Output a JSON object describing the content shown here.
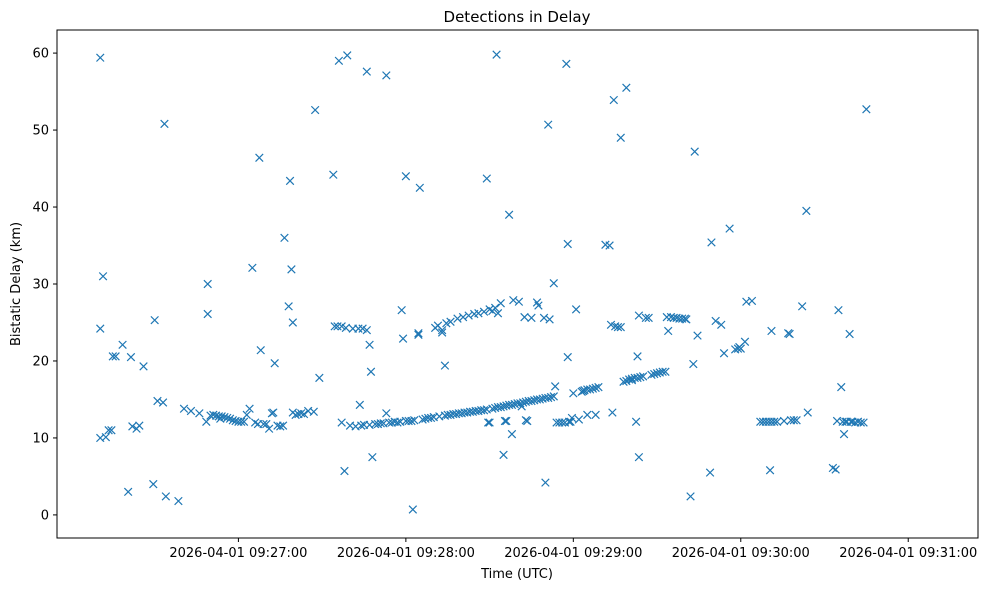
{
  "chart_data": {
    "type": "scatter",
    "title": "Detections in Delay",
    "xlabel": "Time (UTC)",
    "ylabel": "Bistatic Delay (km)",
    "marker": "x",
    "color": "#1f77b4",
    "x_unit": "seconds after 2026-04-01 09:26:00",
    "xlim": [
      -5,
      325
    ],
    "ylim": [
      -3,
      63
    ],
    "xticks": [
      {
        "value": 60,
        "label": "2026-04-01 09:27:00"
      },
      {
        "value": 120,
        "label": "2026-04-01 09:28:00"
      },
      {
        "value": 180,
        "label": "2026-04-01 09:29:00"
      },
      {
        "value": 240,
        "label": "2026-04-01 09:30:00"
      },
      {
        "value": 300,
        "label": "2026-04-01 09:31:00"
      }
    ],
    "yticks": [
      {
        "value": 0,
        "label": "0"
      },
      {
        "value": 10,
        "label": "10"
      },
      {
        "value": 20,
        "label": "20"
      },
      {
        "value": 30,
        "label": "30"
      },
      {
        "value": 40,
        "label": "40"
      },
      {
        "value": 50,
        "label": "50"
      },
      {
        "value": 60,
        "label": "60"
      }
    ],
    "points": [
      [
        10.5,
        59.4
      ],
      [
        10.5,
        24.2
      ],
      [
        10.5,
        10.0
      ],
      [
        11.5,
        31.0
      ],
      [
        12.5,
        10.1
      ],
      [
        13.5,
        11.0
      ],
      [
        14.5,
        11.0
      ],
      [
        15,
        20.6
      ],
      [
        16,
        20.6
      ],
      [
        18.5,
        22.1
      ],
      [
        20.5,
        3.0
      ],
      [
        21.5,
        20.5
      ],
      [
        22,
        11.5
      ],
      [
        23.5,
        11.2
      ],
      [
        24.5,
        11.6
      ],
      [
        26,
        19.3
      ],
      [
        29.5,
        4.0
      ],
      [
        30,
        25.3
      ],
      [
        31,
        14.8
      ],
      [
        33,
        14.6
      ],
      [
        33.5,
        50.8
      ],
      [
        34,
        2.4
      ],
      [
        38.5,
        1.8
      ],
      [
        40.5,
        13.8
      ],
      [
        43,
        13.5
      ],
      [
        46,
        13.2
      ],
      [
        48.5,
        12.1
      ],
      [
        49,
        26.1
      ],
      [
        49,
        30.0
      ],
      [
        50,
        12.9
      ],
      [
        51,
        13.0
      ],
      [
        52,
        12.9
      ],
      [
        53,
        12.8
      ],
      [
        53.5,
        12.5
      ],
      [
        54,
        12.8
      ],
      [
        55,
        12.7
      ],
      [
        56,
        12.6
      ],
      [
        57,
        12.5
      ],
      [
        58,
        12.3
      ],
      [
        59,
        12.2
      ],
      [
        60,
        12.1
      ],
      [
        61,
        12.1
      ],
      [
        62,
        12.1
      ],
      [
        63,
        13.0
      ],
      [
        64,
        13.8
      ],
      [
        65,
        32.1
      ],
      [
        66,
        12.0
      ],
      [
        67,
        11.8
      ],
      [
        67.5,
        46.4
      ],
      [
        68,
        21.4
      ],
      [
        69,
        11.8
      ],
      [
        70,
        11.8
      ],
      [
        71,
        11.2
      ],
      [
        72,
        13.2
      ],
      [
        72.5,
        13.3
      ],
      [
        73,
        19.7
      ],
      [
        74,
        11.6
      ],
      [
        75,
        11.5
      ],
      [
        76,
        11.6
      ],
      [
        76.5,
        36.0
      ],
      [
        78,
        27.1
      ],
      [
        78.5,
        43.4
      ],
      [
        79,
        31.9
      ],
      [
        79.5,
        25.0
      ],
      [
        79.5,
        13.3
      ],
      [
        80.5,
        13.0
      ],
      [
        81.5,
        13.1
      ],
      [
        82.5,
        13.2
      ],
      [
        83.5,
        13.1
      ],
      [
        85,
        13.5
      ],
      [
        87,
        13.4
      ],
      [
        87.5,
        52.6
      ],
      [
        89,
        17.8
      ],
      [
        94,
        44.2
      ],
      [
        94.5,
        24.5
      ],
      [
        95.5,
        24.5
      ],
      [
        96,
        59.0
      ],
      [
        97,
        24.5
      ],
      [
        97,
        12.0
      ],
      [
        98,
        5.7
      ],
      [
        98.5,
        24.3
      ],
      [
        99,
        59.7
      ],
      [
        100,
        11.6
      ],
      [
        101,
        24.2
      ],
      [
        102,
        11.5
      ],
      [
        103,
        24.2
      ],
      [
        103.5,
        14.3
      ],
      [
        104,
        11.6
      ],
      [
        104.5,
        24.2
      ],
      [
        105,
        11.7
      ],
      [
        106,
        57.6
      ],
      [
        106,
        24.0
      ],
      [
        107,
        11.7
      ],
      [
        107,
        22.1
      ],
      [
        107.5,
        18.6
      ],
      [
        108,
        7.5
      ],
      [
        109,
        11.8
      ],
      [
        110,
        11.8
      ],
      [
        111,
        11.9
      ],
      [
        112,
        11.9
      ],
      [
        113,
        57.1
      ],
      [
        113,
        13.2
      ],
      [
        114,
        12.0
      ],
      [
        115,
        12.0
      ],
      [
        116,
        12.1
      ],
      [
        117,
        12.0
      ],
      [
        118,
        12.1
      ],
      [
        118.5,
        26.6
      ],
      [
        119,
        22.9
      ],
      [
        120,
        44.0
      ],
      [
        120,
        12.2
      ],
      [
        121,
        12.2
      ],
      [
        122,
        12.2
      ],
      [
        122.5,
        0.7
      ],
      [
        123,
        12.3
      ],
      [
        124.5,
        23.4
      ],
      [
        124.5,
        23.6
      ],
      [
        125,
        42.5
      ],
      [
        126,
        12.4
      ],
      [
        127,
        12.5
      ],
      [
        128,
        12.6
      ],
      [
        129,
        12.6
      ],
      [
        130,
        12.7
      ],
      [
        130.5,
        24.3
      ],
      [
        131.5,
        24.6
      ],
      [
        132,
        12.8
      ],
      [
        133,
        24.0
      ],
      [
        133,
        23.7
      ],
      [
        134,
        12.9
      ],
      [
        134,
        19.4
      ],
      [
        134.5,
        24.9
      ],
      [
        135,
        13.0
      ],
      [
        136,
        25.1
      ],
      [
        136,
        13.0
      ],
      [
        137,
        13.1
      ],
      [
        138,
        13.1
      ],
      [
        138.5,
        25.5
      ],
      [
        139,
        13.2
      ],
      [
        140,
        13.2
      ],
      [
        140.5,
        25.7
      ],
      [
        141,
        13.3
      ],
      [
        142,
        13.3
      ],
      [
        142.5,
        25.9
      ],
      [
        143,
        13.4
      ],
      [
        144,
        13.4
      ],
      [
        144.5,
        26.1
      ],
      [
        145,
        13.5
      ],
      [
        146,
        13.5
      ],
      [
        146,
        26.2
      ],
      [
        147,
        13.6
      ],
      [
        148,
        13.6
      ],
      [
        148,
        26.4
      ],
      [
        149,
        13.7
      ],
      [
        149,
        43.7
      ],
      [
        149.5,
        12.0
      ],
      [
        150,
        12.0
      ],
      [
        150,
        26.7
      ],
      [
        151,
        13.8
      ],
      [
        151,
        26.5
      ],
      [
        152,
        13.9
      ],
      [
        152,
        26.9
      ],
      [
        152.5,
        59.8
      ],
      [
        153,
        14.0
      ],
      [
        153,
        26.2
      ],
      [
        154,
        27.5
      ],
      [
        154,
        14.0
      ],
      [
        155,
        14.1
      ],
      [
        155,
        7.8
      ],
      [
        155.5,
        12.2
      ],
      [
        156,
        12.2
      ],
      [
        156,
        14.2
      ],
      [
        157,
        39.0
      ],
      [
        157,
        14.3
      ],
      [
        158,
        10.5
      ],
      [
        158,
        14.3
      ],
      [
        158.5,
        27.9
      ],
      [
        159,
        14.4
      ],
      [
        160,
        14.5
      ],
      [
        160.5,
        27.7
      ],
      [
        161,
        14.5
      ],
      [
        161.5,
        14.1
      ],
      [
        162,
        14.6
      ],
      [
        162.5,
        25.7
      ],
      [
        163,
        12.3
      ],
      [
        163,
        14.7
      ],
      [
        163.5,
        12.2
      ],
      [
        164,
        14.8
      ],
      [
        165,
        25.6
      ],
      [
        165,
        14.8
      ],
      [
        166,
        14.9
      ],
      [
        167,
        27.6
      ],
      [
        167,
        15.0
      ],
      [
        167.5,
        27.2
      ],
      [
        168,
        15.0
      ],
      [
        169,
        15.1
      ],
      [
        169.5,
        25.6
      ],
      [
        170,
        15.2
      ],
      [
        170,
        4.2
      ],
      [
        171,
        15.2
      ],
      [
        171,
        50.7
      ],
      [
        171.5,
        25.4
      ],
      [
        172,
        15.3
      ],
      [
        173,
        15.4
      ],
      [
        173,
        30.1
      ],
      [
        173.5,
        16.7
      ],
      [
        174,
        12.0
      ],
      [
        175,
        12.0
      ],
      [
        176,
        12.0
      ],
      [
        177,
        12.0
      ],
      [
        177.5,
        58.6
      ],
      [
        178,
        35.2
      ],
      [
        178,
        20.5
      ],
      [
        178.5,
        12.1
      ],
      [
        179,
        12.1
      ],
      [
        179.5,
        12.6
      ],
      [
        180,
        15.8
      ],
      [
        181,
        26.7
      ],
      [
        182,
        12.4
      ],
      [
        183,
        16.0
      ],
      [
        183.5,
        16.1
      ],
      [
        184,
        16.2
      ],
      [
        185,
        13.0
      ],
      [
        185,
        16.3
      ],
      [
        186,
        16.3
      ],
      [
        187,
        16.4
      ],
      [
        188,
        16.5
      ],
      [
        188,
        13.0
      ],
      [
        189,
        16.6
      ],
      [
        191.5,
        35.1
      ],
      [
        193,
        35.0
      ],
      [
        193.5,
        24.7
      ],
      [
        194,
        13.3
      ],
      [
        194.5,
        53.9
      ],
      [
        195,
        24.5
      ],
      [
        196,
        24.4
      ],
      [
        197,
        49.0
      ],
      [
        197,
        24.4
      ],
      [
        198,
        17.3
      ],
      [
        199,
        55.5
      ],
      [
        199,
        17.4
      ],
      [
        200,
        17.6
      ],
      [
        201,
        17.7
      ],
      [
        201,
        17.5
      ],
      [
        202,
        17.8
      ],
      [
        202.5,
        12.1
      ],
      [
        203,
        20.6
      ],
      [
        203,
        17.8
      ],
      [
        203.5,
        25.9
      ],
      [
        203.5,
        7.5
      ],
      [
        204,
        17.9
      ],
      [
        205,
        18.0
      ],
      [
        206,
        25.6
      ],
      [
        207,
        25.6
      ],
      [
        208,
        18.2
      ],
      [
        209,
        18.3
      ],
      [
        210,
        18.4
      ],
      [
        211,
        18.5
      ],
      [
        212,
        18.6
      ],
      [
        213,
        18.6
      ],
      [
        213.5,
        25.7
      ],
      [
        214,
        23.9
      ],
      [
        215,
        25.7
      ],
      [
        216,
        25.6
      ],
      [
        217,
        25.6
      ],
      [
        218,
        25.5
      ],
      [
        219,
        25.5
      ],
      [
        220,
        25.5
      ],
      [
        220.5,
        25.4
      ],
      [
        222,
        2.4
      ],
      [
        223,
        19.6
      ],
      [
        223.5,
        47.2
      ],
      [
        224.5,
        23.3
      ],
      [
        229,
        5.5
      ],
      [
        229.5,
        35.4
      ],
      [
        231,
        25.2
      ],
      [
        233,
        24.7
      ],
      [
        234,
        21.0
      ],
      [
        236,
        37.2
      ],
      [
        238,
        21.5
      ],
      [
        239,
        21.6
      ],
      [
        239.5,
        21.8
      ],
      [
        240,
        21.6
      ],
      [
        241.5,
        22.5
      ],
      [
        242,
        27.7
      ],
      [
        244,
        27.8
      ],
      [
        247,
        12.1
      ],
      [
        248,
        12.1
      ],
      [
        249,
        12.1
      ],
      [
        250,
        12.1
      ],
      [
        250.5,
        5.8
      ],
      [
        251,
        12.1
      ],
      [
        251,
        23.9
      ],
      [
        252,
        12.1
      ],
      [
        253,
        12.1
      ],
      [
        255.5,
        12.2
      ],
      [
        257,
        23.6
      ],
      [
        257.5,
        23.5
      ],
      [
        258,
        12.3
      ],
      [
        259,
        12.3
      ],
      [
        260,
        12.3
      ],
      [
        262,
        27.1
      ],
      [
        263.5,
        39.5
      ],
      [
        264,
        13.3
      ],
      [
        273,
        6.1
      ],
      [
        274,
        5.9
      ],
      [
        274.5,
        12.2
      ],
      [
        275,
        26.6
      ],
      [
        276,
        16.6
      ],
      [
        276.5,
        12.1
      ],
      [
        277,
        10.5
      ],
      [
        277.5,
        12.1
      ],
      [
        278,
        12.1
      ],
      [
        279,
        23.5
      ],
      [
        279.5,
        12.1
      ],
      [
        280,
        12.1
      ],
      [
        281,
        12.0
      ],
      [
        282,
        12.1
      ],
      [
        283,
        12.0
      ],
      [
        284,
        12.0
      ],
      [
        285,
        52.7
      ]
    ]
  }
}
